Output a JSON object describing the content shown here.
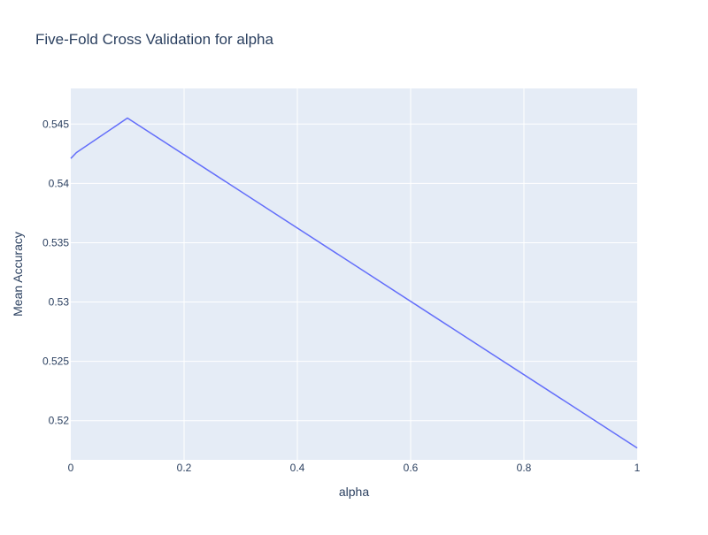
{
  "chart_data": {
    "type": "line",
    "title": "Five-Fold Cross Validation for alpha",
    "xlabel": "alpha",
    "ylabel": "Mean Accuracy",
    "xlim": [
      0,
      1
    ],
    "ylim": [
      0.5167,
      0.548
    ],
    "grid": true,
    "x_ticks": [
      0,
      0.2,
      0.4,
      0.6,
      0.8,
      1
    ],
    "x_tick_labels": [
      "0",
      "0.2",
      "0.4",
      "0.6",
      "0.8",
      "1"
    ],
    "y_ticks": [
      0.52,
      0.525,
      0.53,
      0.535,
      0.54,
      0.545
    ],
    "y_tick_labels": [
      "0.52",
      "0.525",
      "0.53",
      "0.535",
      "0.54",
      "0.545"
    ],
    "series": [
      {
        "color": "#636efa",
        "x": [
          0,
          0.01,
          0.1,
          1
        ],
        "y": [
          0.5421,
          0.5426,
          0.5455,
          0.5177
        ]
      }
    ],
    "colors": {
      "plot_background": "#e5ecf6",
      "grid": "#ffffff",
      "text": "#2a3f5f"
    }
  }
}
